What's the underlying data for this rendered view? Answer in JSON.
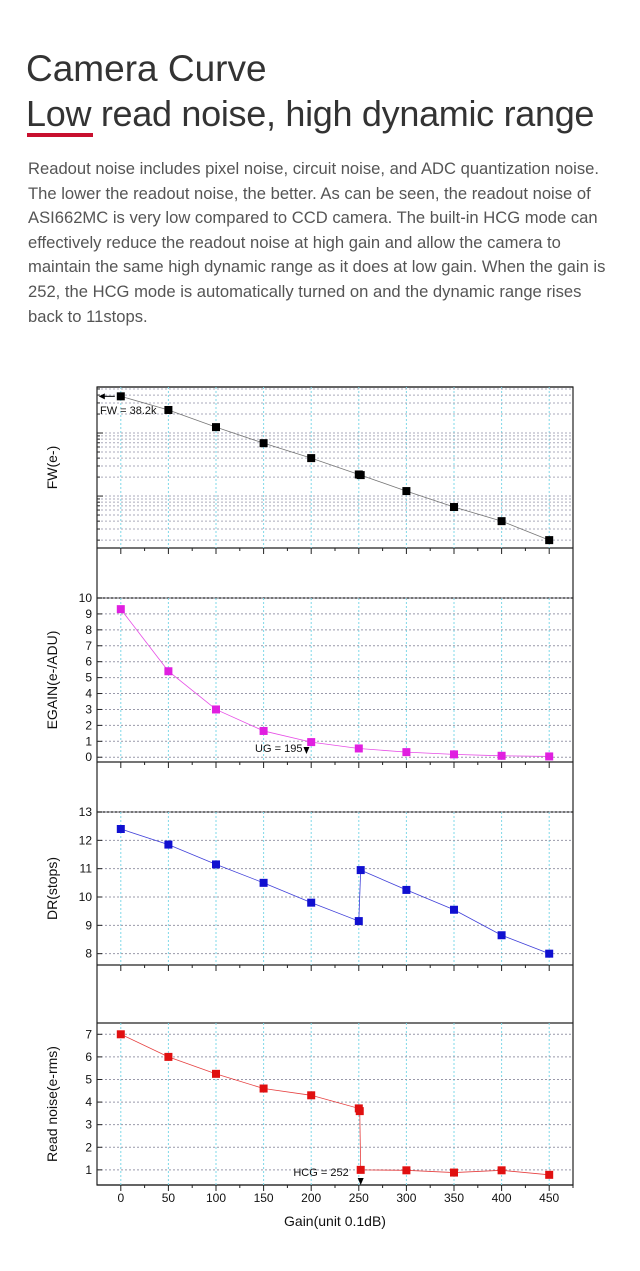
{
  "header": {
    "title": "Camera Curve",
    "subtitle": "Low read noise, high dynamic range",
    "description": "Readout noise includes pixel noise, circuit noise, and ADC quantization noise. The lower the readout noise, the better. As can be seen, the readout noise of ASI662MC is very low compared to CCD camera. The built-in HCG mode can effectively reduce the readout noise at high gain and allow the camera to maintain the same high dynamic range as it does at low gain. When the gain is 252, the HCG mode is automatically turned on and the dynamic range rises back to 11stops."
  },
  "chart_data": {
    "type": "line",
    "xlabel": "Gain(unit 0.1dB)",
    "xlim": [
      -25,
      475
    ],
    "xticks": [
      0,
      50,
      100,
      150,
      200,
      250,
      300,
      350,
      400,
      450
    ],
    "panels": [
      {
        "name": "fw",
        "ylabel": "FW(e-)",
        "scale": "log",
        "ylim": [
          150,
          53700
        ],
        "yticks": [],
        "color": "#000000",
        "annotation": "FW = 38.2k",
        "x": [
          0,
          50,
          100,
          150,
          200,
          250,
          252,
          300,
          350,
          400,
          450
        ],
        "y": [
          38200,
          23200,
          12400,
          6900,
          4000,
          2200,
          2150,
          1200,
          670,
          400,
          200
        ]
      },
      {
        "name": "egain",
        "ylabel": "EGAIN(e-/ADU)",
        "scale": "linear",
        "ylim": [
          -0.3,
          10
        ],
        "yticks": [
          0,
          1,
          2,
          3,
          4,
          5,
          6,
          7,
          8,
          9,
          10
        ],
        "color": "#e020e0",
        "annotation": "UG = 195",
        "x": [
          0,
          50,
          100,
          150,
          200,
          250,
          300,
          350,
          400,
          450
        ],
        "y": [
          9.3,
          5.4,
          3.0,
          1.65,
          0.95,
          0.55,
          0.32,
          0.18,
          0.09,
          0.05
        ]
      },
      {
        "name": "dr",
        "ylabel": "DR(stops)",
        "scale": "linear",
        "ylim": [
          7.6,
          13
        ],
        "yticks": [
          8,
          9,
          10,
          11,
          12,
          13
        ],
        "color": "#1010d0",
        "annotation": "",
        "x": [
          0,
          50,
          100,
          150,
          200,
          250,
          252,
          300,
          350,
          400,
          450
        ],
        "y": [
          12.4,
          11.85,
          11.15,
          10.5,
          9.8,
          9.15,
          10.95,
          10.25,
          9.55,
          8.65,
          8.0
        ]
      },
      {
        "name": "read-noise",
        "ylabel": "Read noise(e-rms)",
        "scale": "linear",
        "ylim": [
          0.33,
          7.5
        ],
        "yticks": [
          1,
          2,
          3,
          4,
          5,
          6,
          7
        ],
        "color": "#e01010",
        "annotation": "HCG = 252",
        "x": [
          0,
          50,
          100,
          150,
          200,
          250,
          251,
          252,
          300,
          350,
          400,
          450
        ],
        "y": [
          7.0,
          6.0,
          5.25,
          4.6,
          4.3,
          3.72,
          3.6,
          1.0,
          0.98,
          0.88,
          0.98,
          0.78
        ]
      }
    ]
  }
}
